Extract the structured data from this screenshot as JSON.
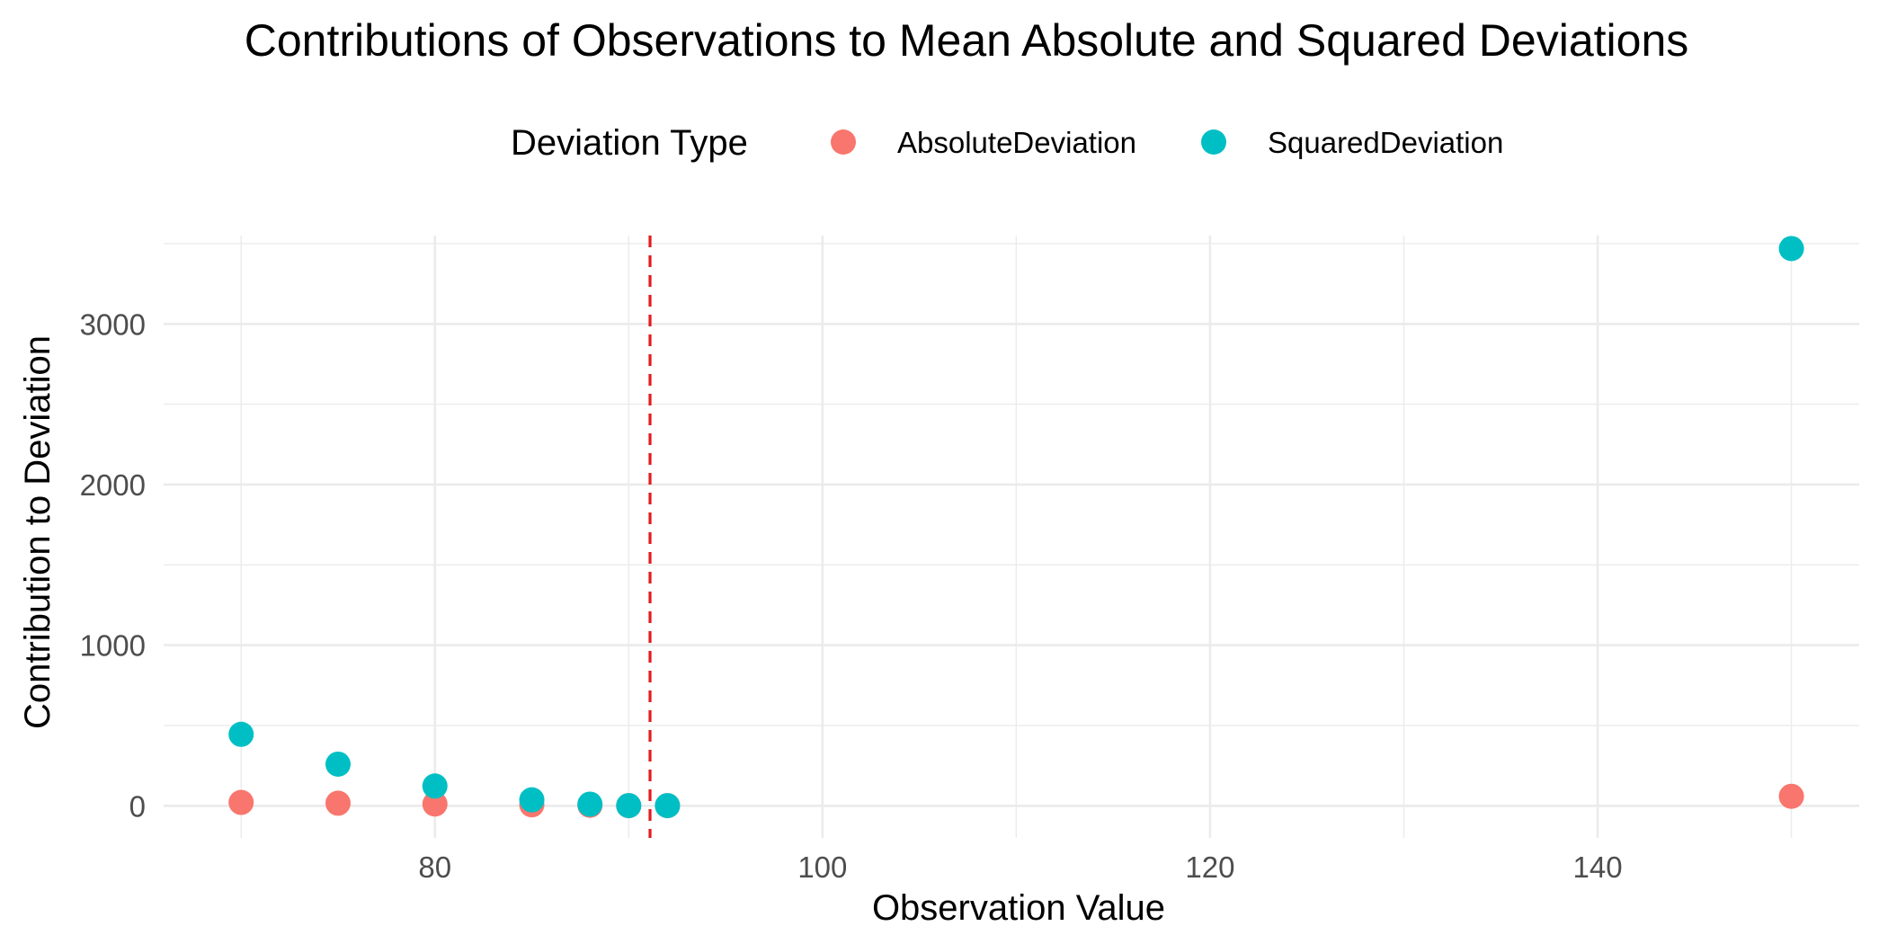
{
  "chart_data": {
    "type": "scatter",
    "title": "Contributions of Observations to Mean Absolute and Squared Deviations",
    "xlabel": "Observation Value",
    "ylabel": "Contribution to Deviation",
    "xlim": [
      66,
      153.5
    ],
    "ylim": [
      -200,
      3550
    ],
    "x_ticks": [
      80,
      100,
      120,
      140
    ],
    "y_ticks": [
      0,
      1000,
      2000,
      3000
    ],
    "grid": true,
    "legend": {
      "title": "Deviation Type",
      "position": "top"
    },
    "reference_line": {
      "orientation": "vertical",
      "x": 91.1,
      "style": "dashed",
      "color": "#e41a1c"
    },
    "series": [
      {
        "name": "AbsoluteDeviation",
        "color": "#f8766d",
        "points": [
          {
            "x": 70,
            "y": 21
          },
          {
            "x": 75,
            "y": 16
          },
          {
            "x": 80,
            "y": 11
          },
          {
            "x": 85,
            "y": 6
          },
          {
            "x": 88,
            "y": 3
          },
          {
            "x": 90,
            "y": 1
          },
          {
            "x": 92,
            "y": 1
          },
          {
            "x": 150,
            "y": 59
          }
        ]
      },
      {
        "name": "SquaredDeviation",
        "color": "#00bfc4",
        "points": [
          {
            "x": 70,
            "y": 445
          },
          {
            "x": 75,
            "y": 259
          },
          {
            "x": 80,
            "y": 123
          },
          {
            "x": 85,
            "y": 37
          },
          {
            "x": 88,
            "y": 10
          },
          {
            "x": 90,
            "y": 1
          },
          {
            "x": 92,
            "y": 1
          },
          {
            "x": 150,
            "y": 3469
          }
        ]
      }
    ]
  }
}
